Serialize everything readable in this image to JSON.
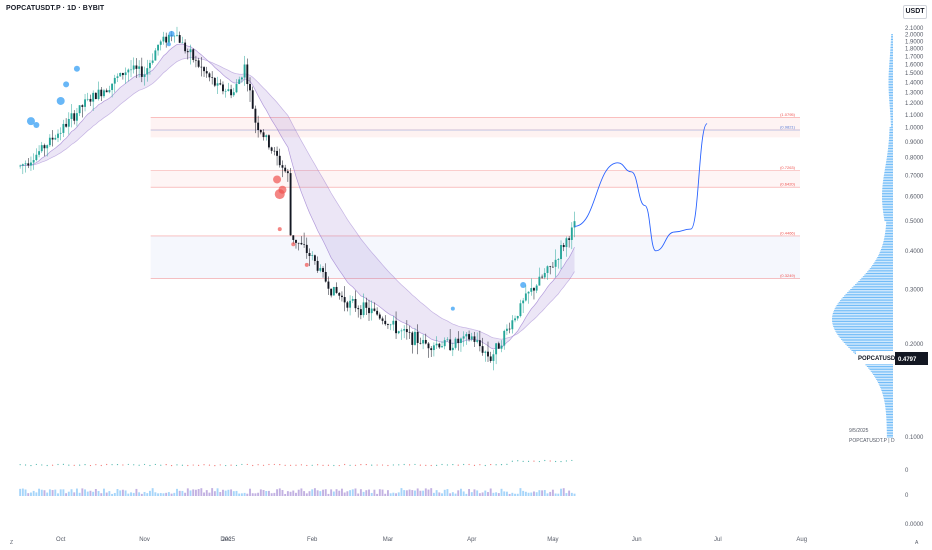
{
  "header": {
    "title": "POPCATUSDT.P · 1D · BYBIT",
    "currency": "USDT"
  },
  "price_badge": {
    "symbol": "POPCATUSDT.P",
    "price": "0.4797"
  },
  "footer": {
    "date": "9/5/2025",
    "symbol_tf": "POPCATUSDT.P | D",
    "left_icon": "Z",
    "right_icon": "A"
  },
  "colors": {
    "up": "#26a69a",
    "down": "#131722",
    "ema_band": "#9575cd",
    "projection": "#2962ff",
    "profile": "#2196f3",
    "fib_red": "#ef5350",
    "fib_blue": "#5b7bd5"
  },
  "chart_data": {
    "type": "candlestick",
    "title": "POPCATUSDT.P · 1D · BYBIT",
    "ylabel": "USDT",
    "yscale": "log",
    "ylim": [
      0.09,
      2.2
    ],
    "y_ticks": [
      "2.1000",
      "2.0000",
      "1.9000",
      "1.8000",
      "1.7000",
      "1.6000",
      "1.5000",
      "1.4000",
      "1.3000",
      "1.2000",
      "1.1000",
      "1.0000",
      "0.9000",
      "0.8000",
      "0.7000",
      "0.6000",
      "0.5000",
      "0.4000",
      "0.3000",
      "0.2000",
      "0.1000"
    ],
    "x_ticks": [
      "Oct",
      "Nov",
      "Dec",
      "2025",
      "Feb",
      "Mar",
      "Apr",
      "May",
      "Jun",
      "Jul",
      "Aug"
    ],
    "price_path": [
      {
        "x": "Sep 16",
        "y": 0.75
      },
      {
        "x": "Sep 22",
        "y": 0.82
      },
      {
        "x": "Oct 1",
        "y": 0.98
      },
      {
        "x": "Oct 10",
        "y": 1.2
      },
      {
        "x": "Oct 18",
        "y": 1.35
      },
      {
        "x": "Oct 26",
        "y": 1.55
      },
      {
        "x": "Nov 1",
        "y": 1.5
      },
      {
        "x": "Nov 6",
        "y": 1.85
      },
      {
        "x": "Nov 12",
        "y": 2.05
      },
      {
        "x": "Nov 16",
        "y": 1.8
      },
      {
        "x": "Nov 22",
        "y": 1.55
      },
      {
        "x": "Nov 28",
        "y": 1.35
      },
      {
        "x": "Dec 4",
        "y": 1.3
      },
      {
        "x": "Dec 8",
        "y": 1.58
      },
      {
        "x": "Dec 12",
        "y": 1.05
      },
      {
        "x": "Dec 18",
        "y": 0.85
      },
      {
        "x": "Dec 24",
        "y": 0.7
      },
      {
        "x": "Jan 1",
        "y": 0.72
      },
      {
        "x": "Jan 6",
        "y": 0.8
      },
      {
        "x": "Jan 12",
        "y": 0.62
      },
      {
        "x": "Jan 18",
        "y": 0.52
      },
      {
        "x": "Jan 24",
        "y": 0.45
      },
      {
        "x": "Feb 1",
        "y": 0.38
      },
      {
        "x": "Feb 8",
        "y": 0.3
      },
      {
        "x": "Feb 15",
        "y": 0.27
      },
      {
        "x": "Feb 25",
        "y": 0.25
      },
      {
        "x": "Mar 5",
        "y": 0.22
      },
      {
        "x": "Mar 15",
        "y": 0.2
      },
      {
        "x": "Mar 25",
        "y": 0.2
      },
      {
        "x": "Apr 1",
        "y": 0.21
      },
      {
        "x": "Apr 8",
        "y": 0.18
      },
      {
        "x": "Apr 15",
        "y": 0.23
      },
      {
        "x": "Apr 22",
        "y": 0.29
      },
      {
        "x": "May 1",
        "y": 0.36
      },
      {
        "x": "May 5",
        "y": 0.42
      },
      {
        "x": "May 9",
        "y": 0.4797
      }
    ],
    "projection": [
      {
        "x": "May 9",
        "y": 0.48
      },
      {
        "x": "May 25",
        "y": 0.77
      },
      {
        "x": "May 30",
        "y": 0.72
      },
      {
        "x": "Jun 4",
        "y": 0.56
      },
      {
        "x": "Jun 8",
        "y": 0.4
      },
      {
        "x": "Jun 15",
        "y": 0.46
      },
      {
        "x": "Jun 21",
        "y": 0.47
      },
      {
        "x": "Jun 27",
        "y": 1.03
      }
    ],
    "fib_levels": [
      {
        "label": "(1.0795)",
        "value": 1.0795,
        "color": "#ef5350"
      },
      {
        "label": "(0.9821)",
        "value": 0.9821,
        "color": "#5b7bd5"
      },
      {
        "label": "(0.7263)",
        "value": 0.7263,
        "color": "#ef5350"
      },
      {
        "label": "(0.6420)",
        "value": 0.642,
        "color": "#ef5350"
      },
      {
        "label": "(0.4466)",
        "value": 0.4466,
        "color": "#ef5350"
      },
      {
        "label": "(0.3249)",
        "value": 0.3249,
        "color": "#ef5350"
      }
    ],
    "indicator_ticks": [
      "0",
      "0",
      "0.0000"
    ]
  }
}
